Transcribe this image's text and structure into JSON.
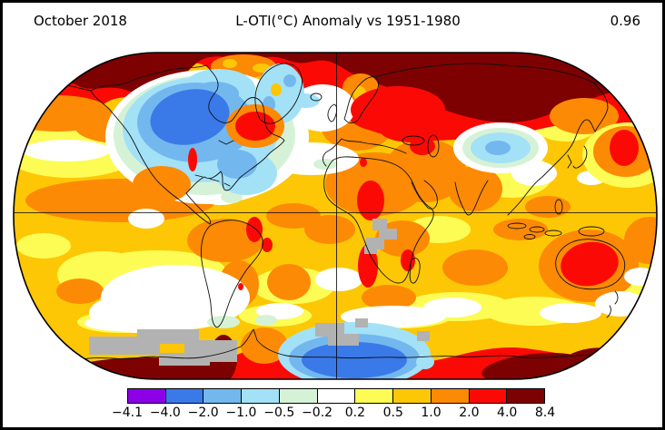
{
  "header": {
    "date_label": "October 2018",
    "title": "L-OTI(°C) Anomaly vs 1951-1980",
    "mean_anomaly": "0.96"
  },
  "colorbar": {
    "tick_labels": [
      "−4.1",
      "−4.0",
      "−2.0",
      "−1.0",
      "−0.5",
      "−0.2",
      "0.2",
      "0.5",
      "1.0",
      "2.0",
      "4.0",
      "8.4"
    ],
    "segment_colors": [
      "#8b00e6",
      "#3a79e8",
      "#73b7ef",
      "#a3e1f7",
      "#d6f2d6",
      "#ffffff",
      "#fcfc55",
      "#fdc705",
      "#fc8a04",
      "#fb0a05",
      "#7e0102"
    ],
    "no_data_color": "#b2b2b2",
    "outline_color": "#000000"
  },
  "chart_data": {
    "type": "heatmap",
    "subtype": "filled-contour world map",
    "projection": "Robinson",
    "title": "L-OTI(°C) Anomaly vs 1951-1980",
    "period": "October 2018",
    "baseline": "1951-1980",
    "units": "°C",
    "global_mean_anomaly": 0.96,
    "legend_position": "bottom",
    "scale_boundaries": [
      -4.1,
      -4.0,
      -2.0,
      -1.0,
      -0.5,
      -0.2,
      0.2,
      0.5,
      1.0,
      2.0,
      4.0,
      8.4
    ],
    "scale_colors": [
      "#8b00e6",
      "#3a79e8",
      "#73b7ef",
      "#a3e1f7",
      "#d6f2d6",
      "#ffffff",
      "#fcfc55",
      "#fdc705",
      "#fc8a04",
      "#fb0a05",
      "#7e0102"
    ],
    "no_data_color": "#b2b2b2",
    "gridlines": [
      "equator",
      "prime meridian"
    ],
    "frame_color": "#000000",
    "background": "#ffffff",
    "notable_anomalies": [
      {
        "region": "Arctic Ocean, Alaska and Siberia",
        "anomaly_range_c": "+4.0 to +8.4"
      },
      {
        "region": "Eastern Europe / western Russia",
        "anomaly_range_c": "+2.0 to +4.0"
      },
      {
        "region": "Hudson Bay / central-eastern Canada",
        "anomaly_range_c": "-1.0 to -4.0"
      },
      {
        "region": "Greenland and NW North Atlantic",
        "anomaly_range_c": "-0.2 to -1.0"
      },
      {
        "region": "Central Asia (Mongolia/NW China)",
        "anomaly_range_c": "-0.5 to -1.0"
      },
      {
        "region": "Australia",
        "anomaly_range_c": "+2.0 to +4.0"
      },
      {
        "region": "North Pacific east of Japan",
        "anomaly_range_c": "+2.0 to +4.0"
      },
      {
        "region": "Antarctic coast 0-90E",
        "anomaly_range_c": "-1.0 to -4.0"
      },
      {
        "region": "West Antarctica / Ross sector",
        "anomaly_range_c": "+4.0 to +8.4"
      },
      {
        "region": "No data",
        "areas": "central Africa (Congo), Southern Ocean patches, parts of Antarctica"
      }
    ]
  }
}
